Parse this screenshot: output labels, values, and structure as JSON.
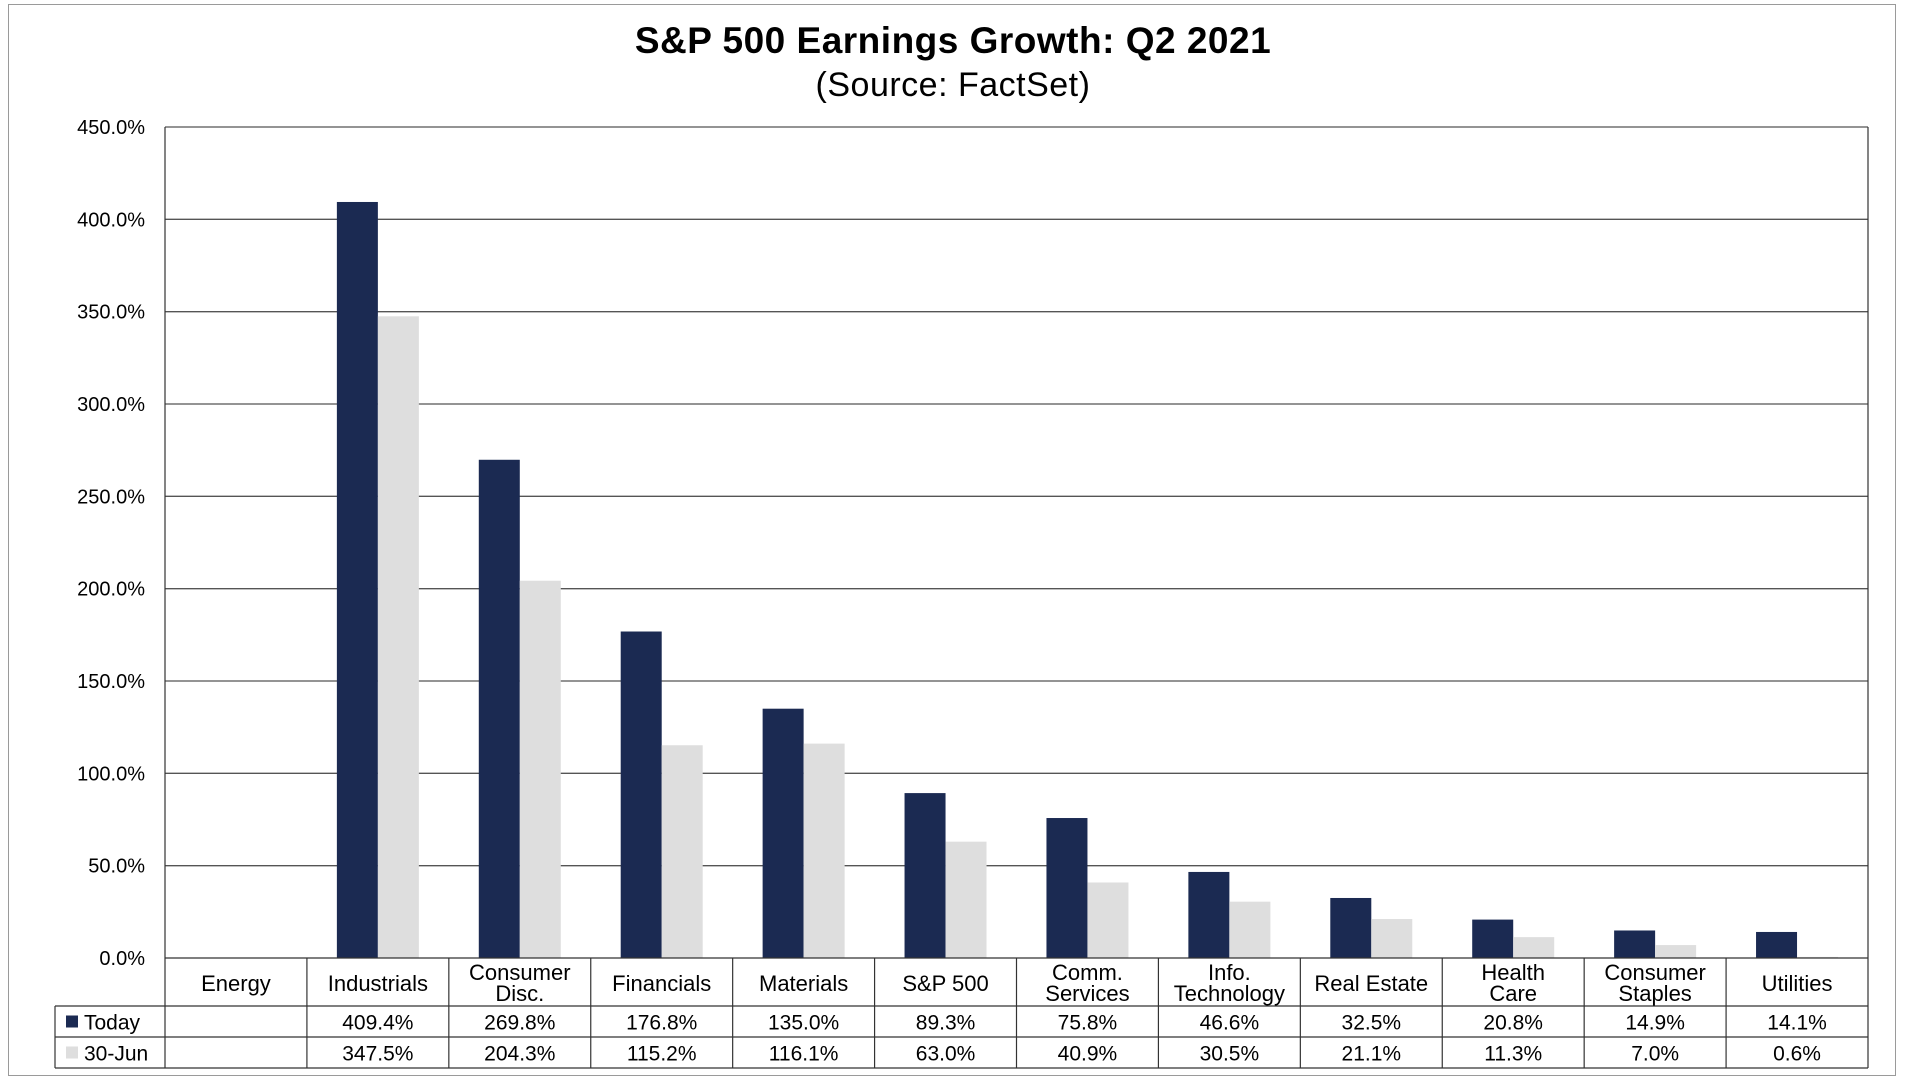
{
  "chart_data": {
    "type": "bar",
    "title": "S&P 500 Earnings Growth: Q2 2021",
    "subtitle": "(Source: FactSet)",
    "xlabel": "",
    "ylabel": "",
    "ylim": [
      0,
      450
    ],
    "yticks": [
      "0.0%",
      "50.0%",
      "100.0%",
      "150.0%",
      "200.0%",
      "250.0%",
      "300.0%",
      "350.0%",
      "400.0%",
      "450.0%"
    ],
    "grid": true,
    "legend_position": "data-table-left",
    "categories": [
      [
        "Energy"
      ],
      [
        "Industrials"
      ],
      [
        "Consumer",
        "Disc."
      ],
      [
        "Financials"
      ],
      [
        "Materials"
      ],
      [
        "S&P 500"
      ],
      [
        "Comm.",
        "Services"
      ],
      [
        "Info.",
        "Technology"
      ],
      [
        "Real Estate"
      ],
      [
        "Health",
        "Care"
      ],
      [
        "Consumer",
        "Staples"
      ],
      [
        "Utilities"
      ]
    ],
    "series": [
      {
        "name": "Today",
        "color": "#1b2a52",
        "values": [
          null,
          409.4,
          269.8,
          176.8,
          135.0,
          89.3,
          75.8,
          46.6,
          32.5,
          20.8,
          14.9,
          14.1
        ],
        "labels": [
          "",
          "409.4%",
          "269.8%",
          "176.8%",
          "135.0%",
          "89.3%",
          "75.8%",
          "46.6%",
          "32.5%",
          "20.8%",
          "14.9%",
          "14.1%"
        ]
      },
      {
        "name": "30-Jun",
        "color": "#dedede",
        "values": [
          null,
          347.5,
          204.3,
          115.2,
          116.1,
          63.0,
          40.9,
          30.5,
          21.1,
          11.3,
          7.0,
          0.6
        ],
        "labels": [
          "",
          "347.5%",
          "204.3%",
          "115.2%",
          "116.1%",
          "63.0%",
          "40.9%",
          "30.5%",
          "21.1%",
          "11.3%",
          "7.0%",
          "0.6%"
        ]
      }
    ]
  }
}
